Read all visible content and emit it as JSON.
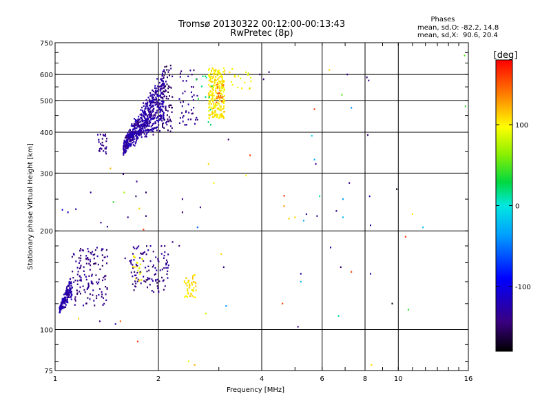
{
  "chart_data": {
    "type": "scatter",
    "title": "Tromsø 20130322 00:12:00-00:13:43",
    "subtitle": "RwPretec (8p)",
    "xlabel": "Frequency [MHz]",
    "ylabel": "Stationary phase Virtual Height [km]",
    "x_scale": "log",
    "y_scale": "log",
    "xlim": [
      1,
      16
    ],
    "ylim": [
      75,
      750
    ],
    "x_ticks": [
      1,
      2,
      4,
      6,
      8,
      10,
      16
    ],
    "y_ticks": [
      75,
      100,
      200,
      300,
      400,
      500,
      600,
      750
    ],
    "grid": true,
    "stats": {
      "heading": "Phases",
      "line_o": "mean, sd,O: -82.2, 14.8",
      "line_x": "mean, sd,X:  90.6, 20.4"
    },
    "colorbar": {
      "label": "[deg]",
      "range": [
        -180,
        180
      ],
      "ticks": [
        100,
        0,
        -100
      ]
    },
    "clusters": [
      {
        "fmin": 1.03,
        "fmax": 1.12,
        "hmin": 112,
        "hmax": 150,
        "phase": -125,
        "n": 170,
        "trend": "rise"
      },
      {
        "fmin": 1.12,
        "fmax": 1.42,
        "hmin": 118,
        "hmax": 178,
        "phase": -140,
        "n": 140,
        "trend": "none"
      },
      {
        "fmin": 1.33,
        "fmax": 1.42,
        "hmin": 340,
        "hmax": 400,
        "phase": -140,
        "n": 28,
        "trend": "none"
      },
      {
        "fmin": 1.58,
        "fmax": 2.08,
        "hmin": 340,
        "hmax": 640,
        "phase": -130,
        "n": 650,
        "trend": "rise"
      },
      {
        "fmin": 1.65,
        "fmax": 2.15,
        "hmin": 130,
        "hmax": 180,
        "phase": -140,
        "n": 110,
        "trend": "none"
      },
      {
        "fmin": 1.68,
        "fmax": 1.8,
        "hmin": 140,
        "hmax": 170,
        "phase": 100,
        "n": 22,
        "trend": "none"
      },
      {
        "fmin": 2.05,
        "fmax": 2.2,
        "hmin": 400,
        "hmax": 640,
        "phase": -150,
        "n": 70,
        "trend": "none"
      },
      {
        "fmin": 2.3,
        "fmax": 2.6,
        "hmin": 420,
        "hmax": 620,
        "phase": -135,
        "n": 45,
        "trend": "none"
      },
      {
        "fmin": 2.38,
        "fmax": 2.58,
        "hmin": 125,
        "hmax": 148,
        "phase": 105,
        "n": 45,
        "trend": "none"
      },
      {
        "fmin": 2.8,
        "fmax": 3.12,
        "hmin": 440,
        "hmax": 630,
        "phase": 102,
        "n": 240,
        "trend": "none"
      },
      {
        "fmin": 2.95,
        "fmax": 3.1,
        "hmin": 490,
        "hmax": 560,
        "phase": 140,
        "n": 22,
        "trend": "none"
      },
      {
        "fmin": 2.55,
        "fmax": 2.9,
        "hmin": 420,
        "hmax": 600,
        "phase": 20,
        "n": 12,
        "trend": "none"
      },
      {
        "fmin": 3.2,
        "fmax": 3.75,
        "hmin": 540,
        "hmax": 630,
        "phase": 95,
        "n": 18,
        "trend": "none"
      }
    ],
    "scatter_points": [
      {
        "f": 1.05,
        "h": 232,
        "p": -105
      },
      {
        "f": 1.09,
        "h": 228,
        "p": -120
      },
      {
        "f": 1.15,
        "h": 233,
        "p": -130
      },
      {
        "f": 1.27,
        "h": 262,
        "p": -140
      },
      {
        "f": 1.36,
        "h": 212,
        "p": -140
      },
      {
        "f": 1.42,
        "h": 206,
        "p": -135
      },
      {
        "f": 1.48,
        "h": 245,
        "p": 40
      },
      {
        "f": 1.58,
        "h": 298,
        "p": -140
      },
      {
        "f": 1.59,
        "h": 262,
        "p": 70
      },
      {
        "f": 1.72,
        "h": 255,
        "p": -150
      },
      {
        "f": 1.73,
        "h": 283,
        "p": -140
      },
      {
        "f": 1.76,
        "h": 234,
        "p": 110
      },
      {
        "f": 1.81,
        "h": 202,
        "p": 160
      },
      {
        "f": 1.84,
        "h": 222,
        "p": -140
      },
      {
        "f": 1.84,
        "h": 262,
        "p": -150
      },
      {
        "f": 1.63,
        "h": 220,
        "p": -140
      },
      {
        "f": 1.45,
        "h": 310,
        "p": 120
      },
      {
        "f": 1.5,
        "h": 104,
        "p": -130
      },
      {
        "f": 1.55,
        "h": 106,
        "p": 150
      },
      {
        "f": 1.74,
        "h": 92,
        "p": 165
      },
      {
        "f": 1.35,
        "h": 106,
        "p": -145
      },
      {
        "f": 1.6,
        "h": 165,
        "p": -140
      },
      {
        "f": 1.77,
        "h": 150,
        "p": -150
      },
      {
        "f": 1.17,
        "h": 108,
        "p": 110
      },
      {
        "f": 2.2,
        "h": 185,
        "p": -145
      },
      {
        "f": 2.3,
        "h": 180,
        "p": -140
      },
      {
        "f": 2.35,
        "h": 250,
        "p": -140
      },
      {
        "f": 2.35,
        "h": 228,
        "p": -150
      },
      {
        "f": 2.45,
        "h": 80,
        "p": 90
      },
      {
        "f": 2.55,
        "h": 78,
        "p": 120
      },
      {
        "f": 2.6,
        "h": 205,
        "p": -60
      },
      {
        "f": 2.65,
        "h": 236,
        "p": -140
      },
      {
        "f": 2.75,
        "h": 112,
        "p": 80
      },
      {
        "f": 2.8,
        "h": 320,
        "p": 110
      },
      {
        "f": 2.9,
        "h": 280,
        "p": 100
      },
      {
        "f": 3.05,
        "h": 170,
        "p": 110
      },
      {
        "f": 3.1,
        "h": 155,
        "p": -140
      },
      {
        "f": 3.15,
        "h": 118,
        "p": -40
      },
      {
        "f": 3.2,
        "h": 380,
        "p": -150
      },
      {
        "f": 3.6,
        "h": 295,
        "p": 100
      },
      {
        "f": 3.7,
        "h": 340,
        "p": 160
      },
      {
        "f": 3.95,
        "h": 600,
        "p": -150
      },
      {
        "f": 4.05,
        "h": 580,
        "p": -150
      },
      {
        "f": 4.2,
        "h": 610,
        "p": -140
      },
      {
        "f": 4.6,
        "h": 120,
        "p": 160
      },
      {
        "f": 4.65,
        "h": 256,
        "p": 160
      },
      {
        "f": 4.65,
        "h": 238,
        "p": 130
      },
      {
        "f": 4.8,
        "h": 218,
        "p": 110
      },
      {
        "f": 5.0,
        "h": 220,
        "p": 110
      },
      {
        "f": 5.1,
        "h": 102,
        "p": -145
      },
      {
        "f": 5.2,
        "h": 148,
        "p": -130
      },
      {
        "f": 5.2,
        "h": 140,
        "p": -30
      },
      {
        "f": 5.3,
        "h": 215,
        "p": -30
      },
      {
        "f": 5.4,
        "h": 225,
        "p": -130
      },
      {
        "f": 5.6,
        "h": 390,
        "p": -10
      },
      {
        "f": 5.7,
        "h": 470,
        "p": 160
      },
      {
        "f": 5.7,
        "h": 330,
        "p": -30
      },
      {
        "f": 5.75,
        "h": 320,
        "p": -140
      },
      {
        "f": 5.8,
        "h": 222,
        "p": -140
      },
      {
        "f": 5.9,
        "h": 255,
        "p": 10
      },
      {
        "f": 6.3,
        "h": 620,
        "p": 110
      },
      {
        "f": 6.35,
        "h": 178,
        "p": -130
      },
      {
        "f": 6.6,
        "h": 230,
        "p": -140
      },
      {
        "f": 6.7,
        "h": 110,
        "p": 10
      },
      {
        "f": 6.8,
        "h": 155,
        "p": -150
      },
      {
        "f": 6.85,
        "h": 520,
        "p": 50
      },
      {
        "f": 6.9,
        "h": 220,
        "p": -20
      },
      {
        "f": 6.9,
        "h": 250,
        "p": -30
      },
      {
        "f": 7.1,
        "h": 600,
        "p": -140
      },
      {
        "f": 7.2,
        "h": 280,
        "p": -140
      },
      {
        "f": 7.3,
        "h": 475,
        "p": -40
      },
      {
        "f": 7.3,
        "h": 150,
        "p": 160
      },
      {
        "f": 8.1,
        "h": 588,
        "p": -150
      },
      {
        "f": 8.15,
        "h": 392,
        "p": -150
      },
      {
        "f": 8.2,
        "h": 575,
        "p": -140
      },
      {
        "f": 8.25,
        "h": 255,
        "p": -130
      },
      {
        "f": 8.3,
        "h": 208,
        "p": -130
      },
      {
        "f": 8.3,
        "h": 148,
        "p": -130
      },
      {
        "f": 8.35,
        "h": 78,
        "p": 110
      },
      {
        "f": 9.6,
        "h": 120,
        "p": -170
      },
      {
        "f": 9.9,
        "h": 268,
        "p": -170
      },
      {
        "f": 10.5,
        "h": 192,
        "p": 165
      },
      {
        "f": 10.7,
        "h": 115,
        "p": 40
      },
      {
        "f": 11.0,
        "h": 225,
        "p": 100
      },
      {
        "f": 11.8,
        "h": 205,
        "p": -20
      },
      {
        "f": 15.6,
        "h": 685,
        "p": 50
      },
      {
        "f": 15.7,
        "h": 480,
        "p": 40
      }
    ]
  }
}
